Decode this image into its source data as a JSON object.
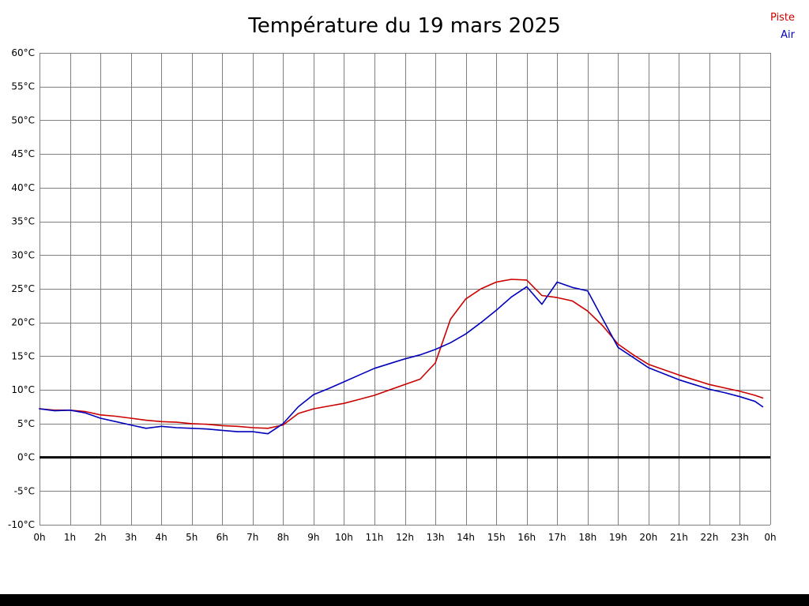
{
  "title": "Température du 19 mars 2025",
  "legend": {
    "piste_label": "Piste",
    "air_label": "Air"
  },
  "colors": {
    "piste": "#cc0000",
    "air": "#0000bb",
    "grid": "#808080",
    "zero_line": "#000000",
    "text": "#000000"
  },
  "chart_data": {
    "type": "line",
    "title": "Température du 19 mars 2025",
    "xlabel": "",
    "ylabel": "",
    "xlim": [
      0,
      24
    ],
    "ylim": [
      -10,
      60
    ],
    "grid": true,
    "zero_line_at": 0,
    "legend_position": "top-right",
    "x_ticks": [
      "0h",
      "1h",
      "2h",
      "3h",
      "4h",
      "5h",
      "6h",
      "7h",
      "8h",
      "9h",
      "10h",
      "11h",
      "12h",
      "13h",
      "14h",
      "15h",
      "16h",
      "17h",
      "18h",
      "19h",
      "20h",
      "21h",
      "22h",
      "23h",
      "0h"
    ],
    "y_ticks": [
      "60°C",
      "55°C",
      "50°C",
      "45°C",
      "40°C",
      "35°C",
      "30°C",
      "25°C",
      "20°C",
      "15°C",
      "10°C",
      "5°C",
      "0°C",
      "-5°C",
      "-10°C"
    ],
    "y_tick_values": [
      60,
      55,
      50,
      45,
      40,
      35,
      30,
      25,
      20,
      15,
      10,
      5,
      0,
      -5,
      -10
    ],
    "x": [
      0,
      0.5,
      1,
      1.5,
      2,
      2.5,
      3,
      3.5,
      4,
      4.5,
      5,
      5.5,
      6,
      6.5,
      7,
      7.5,
      8,
      8.5,
      9,
      9.5,
      10,
      10.5,
      11,
      11.5,
      12,
      12.5,
      13,
      13.5,
      14,
      14.5,
      15,
      15.5,
      16,
      16.5,
      17,
      17.5,
      18,
      18.5,
      19,
      19.5,
      20,
      20.5,
      21,
      21.5,
      22,
      22.5,
      23,
      23.5,
      23.75
    ],
    "series": [
      {
        "name": "Piste",
        "color": "#cc0000",
        "values": [
          7.2,
          7.0,
          7.0,
          6.8,
          6.3,
          6.1,
          5.8,
          5.5,
          5.3,
          5.2,
          5.0,
          4.9,
          4.7,
          4.6,
          4.4,
          4.3,
          4.8,
          6.5,
          7.2,
          7.6,
          8.0,
          8.6,
          9.2,
          10.0,
          10.8,
          11.6,
          14.0,
          20.5,
          23.5,
          25.0,
          26.0,
          26.4,
          26.3,
          24.0,
          23.7,
          23.2,
          21.7,
          19.5,
          16.8,
          15.2,
          13.8,
          13.0,
          12.2,
          11.5,
          10.8,
          10.3,
          9.8,
          9.2,
          8.8
        ]
      },
      {
        "name": "Air",
        "color": "#0000bb",
        "values": [
          7.2,
          6.9,
          7.0,
          6.6,
          5.8,
          5.3,
          4.8,
          4.3,
          4.6,
          4.4,
          4.3,
          4.2,
          4.0,
          3.8,
          3.8,
          3.5,
          5.0,
          7.5,
          9.3,
          10.2,
          11.2,
          12.2,
          13.2,
          13.9,
          14.6,
          15.2,
          16.0,
          17.0,
          18.3,
          20.0,
          21.8,
          23.8,
          25.3,
          22.7,
          26.0,
          25.2,
          24.7,
          20.5,
          16.3,
          14.8,
          13.3,
          12.4,
          11.5,
          10.8,
          10.1,
          9.6,
          9.0,
          8.3,
          7.5
        ]
      }
    ]
  }
}
